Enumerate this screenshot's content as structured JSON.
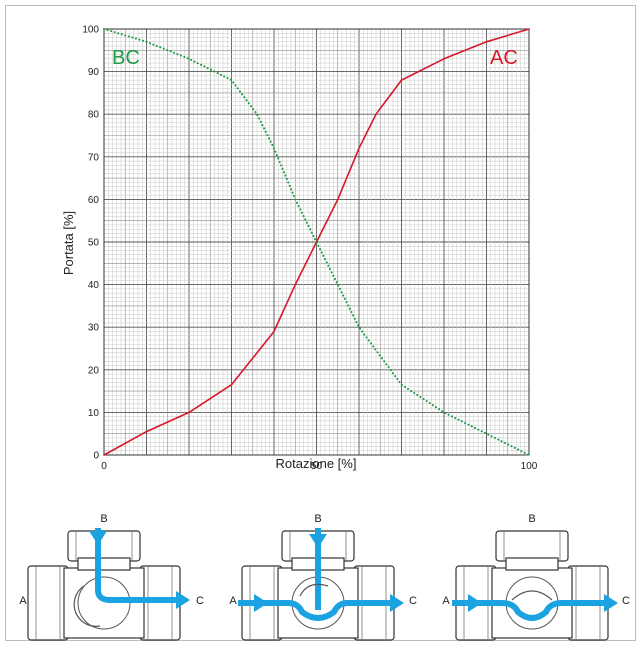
{
  "chart_data": {
    "type": "line",
    "xlabel": "Rotazione [%]",
    "ylabel": "Portata [%]",
    "xlim": [
      0,
      100
    ],
    "ylim": [
      0,
      100
    ],
    "x_ticks": [
      "0",
      "50",
      "100"
    ],
    "y_ticks": [
      "0",
      "10",
      "20",
      "30",
      "40",
      "50",
      "60",
      "70",
      "80",
      "90",
      "100"
    ],
    "grid": true,
    "series": [
      {
        "name": "AC",
        "color": "#d7192a",
        "style": "solid",
        "x": [
          0,
          10,
          20,
          30,
          40,
          45,
          50,
          55,
          60,
          64,
          70,
          80,
          90,
          100
        ],
        "y": [
          0,
          5.5,
          10,
          16.5,
          29,
          40,
          50,
          60,
          72,
          80,
          88,
          93,
          97,
          100
        ]
      },
      {
        "name": "BC",
        "color": "#1f9a45",
        "style": "dotted",
        "x": [
          0,
          10,
          20,
          30,
          36,
          40,
          45,
          50,
          55,
          60,
          70,
          80,
          90,
          100
        ],
        "y": [
          100,
          97,
          93,
          88,
          80,
          72,
          60,
          50,
          40,
          30,
          16.5,
          10,
          5,
          0
        ]
      }
    ]
  },
  "diagrams": {
    "port_b": "B",
    "port_a": "A",
    "port_c": "C",
    "flow_color": "#1aa3e0"
  }
}
